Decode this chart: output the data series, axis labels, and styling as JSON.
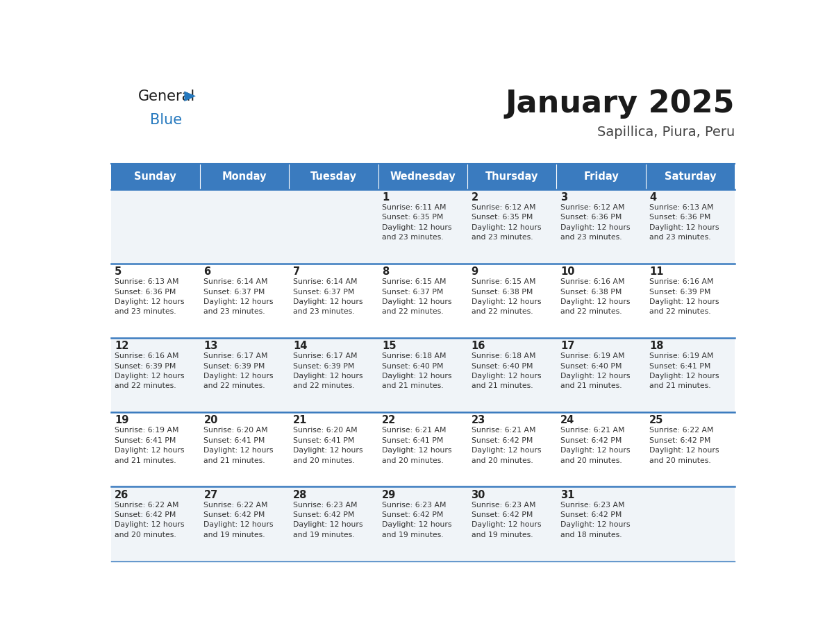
{
  "title": "January 2025",
  "subtitle": "Sapillica, Piura, Peru",
  "header_color": "#3a7bbf",
  "header_text_color": "#ffffff",
  "days_of_week": [
    "Sunday",
    "Monday",
    "Tuesday",
    "Wednesday",
    "Thursday",
    "Friday",
    "Saturday"
  ],
  "calendar": [
    [
      {
        "day": "",
        "info": ""
      },
      {
        "day": "",
        "info": ""
      },
      {
        "day": "",
        "info": ""
      },
      {
        "day": "1",
        "info": "Sunrise: 6:11 AM\nSunset: 6:35 PM\nDaylight: 12 hours\nand 23 minutes."
      },
      {
        "day": "2",
        "info": "Sunrise: 6:12 AM\nSunset: 6:35 PM\nDaylight: 12 hours\nand 23 minutes."
      },
      {
        "day": "3",
        "info": "Sunrise: 6:12 AM\nSunset: 6:36 PM\nDaylight: 12 hours\nand 23 minutes."
      },
      {
        "day": "4",
        "info": "Sunrise: 6:13 AM\nSunset: 6:36 PM\nDaylight: 12 hours\nand 23 minutes."
      }
    ],
    [
      {
        "day": "5",
        "info": "Sunrise: 6:13 AM\nSunset: 6:36 PM\nDaylight: 12 hours\nand 23 minutes."
      },
      {
        "day": "6",
        "info": "Sunrise: 6:14 AM\nSunset: 6:37 PM\nDaylight: 12 hours\nand 23 minutes."
      },
      {
        "day": "7",
        "info": "Sunrise: 6:14 AM\nSunset: 6:37 PM\nDaylight: 12 hours\nand 23 minutes."
      },
      {
        "day": "8",
        "info": "Sunrise: 6:15 AM\nSunset: 6:37 PM\nDaylight: 12 hours\nand 22 minutes."
      },
      {
        "day": "9",
        "info": "Sunrise: 6:15 AM\nSunset: 6:38 PM\nDaylight: 12 hours\nand 22 minutes."
      },
      {
        "day": "10",
        "info": "Sunrise: 6:16 AM\nSunset: 6:38 PM\nDaylight: 12 hours\nand 22 minutes."
      },
      {
        "day": "11",
        "info": "Sunrise: 6:16 AM\nSunset: 6:39 PM\nDaylight: 12 hours\nand 22 minutes."
      }
    ],
    [
      {
        "day": "12",
        "info": "Sunrise: 6:16 AM\nSunset: 6:39 PM\nDaylight: 12 hours\nand 22 minutes."
      },
      {
        "day": "13",
        "info": "Sunrise: 6:17 AM\nSunset: 6:39 PM\nDaylight: 12 hours\nand 22 minutes."
      },
      {
        "day": "14",
        "info": "Sunrise: 6:17 AM\nSunset: 6:39 PM\nDaylight: 12 hours\nand 22 minutes."
      },
      {
        "day": "15",
        "info": "Sunrise: 6:18 AM\nSunset: 6:40 PM\nDaylight: 12 hours\nand 21 minutes."
      },
      {
        "day": "16",
        "info": "Sunrise: 6:18 AM\nSunset: 6:40 PM\nDaylight: 12 hours\nand 21 minutes."
      },
      {
        "day": "17",
        "info": "Sunrise: 6:19 AM\nSunset: 6:40 PM\nDaylight: 12 hours\nand 21 minutes."
      },
      {
        "day": "18",
        "info": "Sunrise: 6:19 AM\nSunset: 6:41 PM\nDaylight: 12 hours\nand 21 minutes."
      }
    ],
    [
      {
        "day": "19",
        "info": "Sunrise: 6:19 AM\nSunset: 6:41 PM\nDaylight: 12 hours\nand 21 minutes."
      },
      {
        "day": "20",
        "info": "Sunrise: 6:20 AM\nSunset: 6:41 PM\nDaylight: 12 hours\nand 21 minutes."
      },
      {
        "day": "21",
        "info": "Sunrise: 6:20 AM\nSunset: 6:41 PM\nDaylight: 12 hours\nand 20 minutes."
      },
      {
        "day": "22",
        "info": "Sunrise: 6:21 AM\nSunset: 6:41 PM\nDaylight: 12 hours\nand 20 minutes."
      },
      {
        "day": "23",
        "info": "Sunrise: 6:21 AM\nSunset: 6:42 PM\nDaylight: 12 hours\nand 20 minutes."
      },
      {
        "day": "24",
        "info": "Sunrise: 6:21 AM\nSunset: 6:42 PM\nDaylight: 12 hours\nand 20 minutes."
      },
      {
        "day": "25",
        "info": "Sunrise: 6:22 AM\nSunset: 6:42 PM\nDaylight: 12 hours\nand 20 minutes."
      }
    ],
    [
      {
        "day": "26",
        "info": "Sunrise: 6:22 AM\nSunset: 6:42 PM\nDaylight: 12 hours\nand 20 minutes."
      },
      {
        "day": "27",
        "info": "Sunrise: 6:22 AM\nSunset: 6:42 PM\nDaylight: 12 hours\nand 19 minutes."
      },
      {
        "day": "28",
        "info": "Sunrise: 6:23 AM\nSunset: 6:42 PM\nDaylight: 12 hours\nand 19 minutes."
      },
      {
        "day": "29",
        "info": "Sunrise: 6:23 AM\nSunset: 6:42 PM\nDaylight: 12 hours\nand 19 minutes."
      },
      {
        "day": "30",
        "info": "Sunrise: 6:23 AM\nSunset: 6:42 PM\nDaylight: 12 hours\nand 19 minutes."
      },
      {
        "day": "31",
        "info": "Sunrise: 6:23 AM\nSunset: 6:42 PM\nDaylight: 12 hours\nand 18 minutes."
      },
      {
        "day": "",
        "info": ""
      }
    ]
  ],
  "cell_bg_even": "#f0f4f8",
  "cell_bg_odd": "#ffffff",
  "border_color": "#3a7bbf",
  "day_number_color": "#222222",
  "info_text_color": "#333333",
  "logo_general_color": "#1a1a1a",
  "logo_blue_color": "#2478be"
}
